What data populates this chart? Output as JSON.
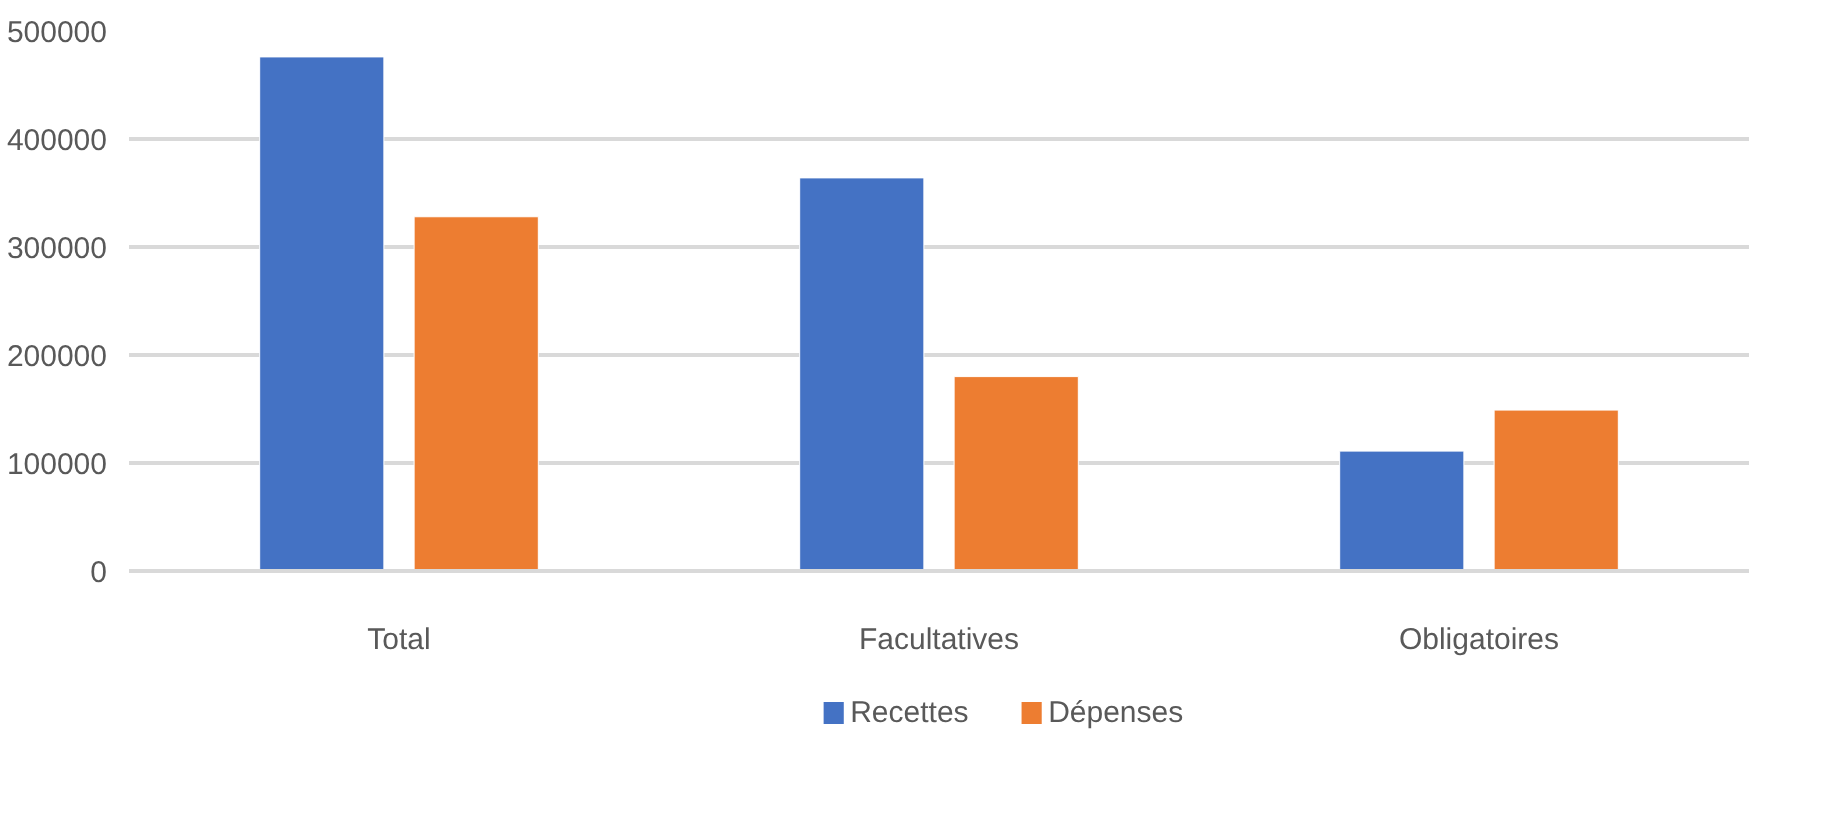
{
  "chart_data": {
    "type": "bar",
    "categories": [
      "Total",
      "Facultatives",
      "Obligatoires"
    ],
    "series": [
      {
        "name": "Recettes",
        "color": "#4472c4",
        "values": [
          476000,
          364000,
          111000
        ]
      },
      {
        "name": "Dépenses",
        "color": "#ed7d31",
        "values": [
          328000,
          180000,
          149000
        ]
      }
    ],
    "ylim": [
      0,
      500000
    ],
    "yticks": [
      0,
      100000,
      200000,
      300000,
      400000,
      500000
    ],
    "grid": "y",
    "legend": "bottom"
  }
}
